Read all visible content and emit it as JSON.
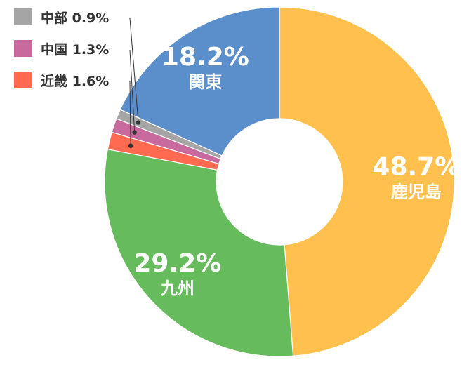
{
  "chart_data": {
    "type": "pie",
    "donut": true,
    "categories": [
      "鹿児島",
      "九州",
      "近畿",
      "中国",
      "中部",
      "関東"
    ],
    "values": [
      48.7,
      29.2,
      1.6,
      1.3,
      0.9,
      18.2
    ],
    "labels": [
      "48.7%",
      "29.2%",
      "1.6%",
      "1.3%",
      "0.9%",
      "18.2%"
    ],
    "colors": [
      "#FFC04D",
      "#66BB5C",
      "#FF6A50",
      "#C96A9E",
      "#A5A5A5",
      "#5B8FCC"
    ],
    "start": "12 o'clock",
    "direction": "clockwise",
    "legend": [
      {
        "name": "中部",
        "pct": "0.9%",
        "color": "#A5A5A5"
      },
      {
        "name": "中国",
        "pct": "1.3%",
        "color": "#C96A9E"
      },
      {
        "name": "近畿",
        "pct": "1.6%",
        "color": "#FF6A50"
      }
    ],
    "legend_position": "top-left",
    "title": ""
  }
}
